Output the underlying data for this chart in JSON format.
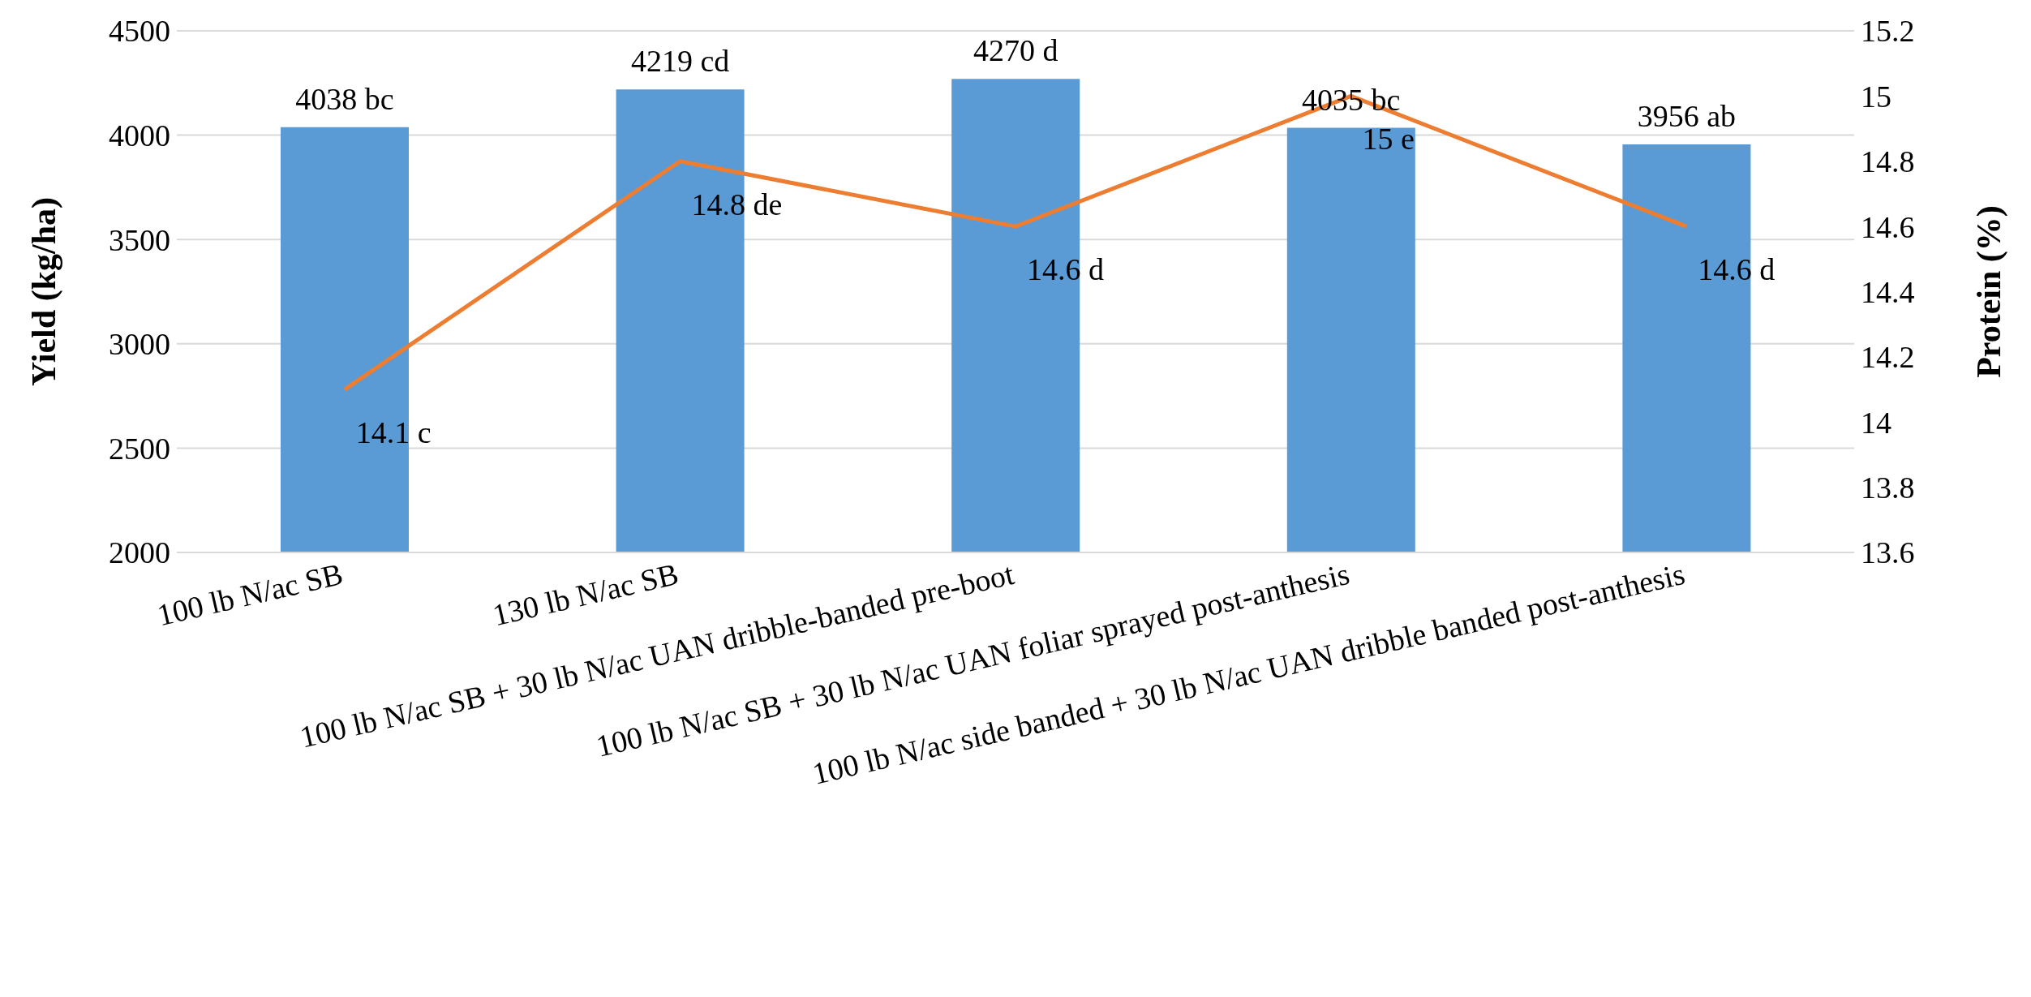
{
  "chart_data": {
    "type": "bar",
    "ylabel": "Yield (kg/ha)",
    "y2label": "Protein (%)",
    "categories": [
      "100 lb N/ac SB",
      "130 lb N/ac SB",
      "100 lb N/ac SB  + 30 lb N/ac UAN dribble-banded pre-boot",
      "100 lb N/ac SB  + 30 lb N/ac UAN foliar sprayed post-anthesis",
      "100 lb N/ac side banded  + 30 lb N/ac  UAN dribble banded post-anthesis"
    ],
    "series": [
      {
        "color": "#5b9bd5",
        "values": [
          4038,
          4219,
          4270,
          4035,
          3956
        ],
        "value_labels": [
          "4038 bc",
          "4219 cd",
          "4270 d",
          "4035 bc",
          "3956 ab"
        ]
      },
      {
        "type": "line",
        "axis": "y2",
        "color": "#ed7d31",
        "values": [
          14.1,
          14.8,
          14.6,
          15,
          14.6
        ],
        "value_labels": [
          "14.1 c",
          "14.8 de",
          "14.6 d",
          "15 e",
          "14.6 d"
        ]
      }
    ],
    "ylim": [
      2000,
      4500
    ],
    "yticks": [
      2000,
      2500,
      3000,
      3500,
      4000,
      4500
    ],
    "y2lim": [
      13.6,
      15.2
    ],
    "y2ticks": [
      13.6,
      13.8,
      14,
      14.2,
      14.4,
      14.6,
      14.8,
      15,
      15.2
    ],
    "grid": "y",
    "marker": "none"
  }
}
